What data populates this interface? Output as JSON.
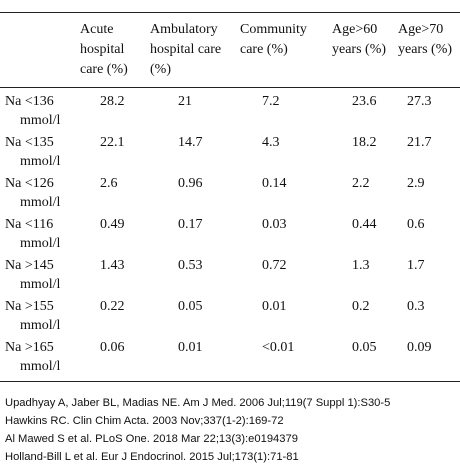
{
  "table": {
    "columns": [
      "Acute hospital care (%)",
      "Ambulatory hospital care (%)",
      "Community care (%)",
      "Age>60 years (%)",
      "Age>70 years (%)"
    ],
    "rows": [
      {
        "label": "Na <136 mmol/l",
        "values": [
          28.2,
          21,
          7.2,
          23.6,
          27.3
        ]
      },
      {
        "label": "Na <135 mmol/l",
        "values": [
          22.1,
          14.7,
          4.3,
          18.2,
          21.7
        ]
      },
      {
        "label": "Na <126 mmol/l",
        "values": [
          2.6,
          0.96,
          0.14,
          2.2,
          2.9
        ]
      },
      {
        "label": "Na <116 mmol/l",
        "values": [
          0.49,
          0.17,
          0.03,
          0.44,
          0.6
        ]
      },
      {
        "label": "Na >145 mmol/l",
        "values": [
          1.43,
          0.53,
          0.72,
          1.3,
          1.7
        ]
      },
      {
        "label": "Na >155 mmol/l",
        "values": [
          0.22,
          0.05,
          0.01,
          0.2,
          0.3
        ]
      },
      {
        "label": "Na >165 mmol/l",
        "values": [
          0.06,
          0.01,
          "<0.01",
          0.05,
          0.09
        ]
      }
    ]
  },
  "references": [
    "Upadhyay A, Jaber BL, Madias NE. Am J Med. 2006 Jul;119(7 Suppl 1):S30-5",
    "Hawkins RC. Clin Chim Acta. 2003 Nov;337(1-2):169-72",
    "Al Mawed S et al. PLoS One. 2018 Mar 22;13(3):e0194379",
    "Holland-Bill L et al. Eur J Endocrinol. 2015 Jul;173(1):71-81"
  ]
}
